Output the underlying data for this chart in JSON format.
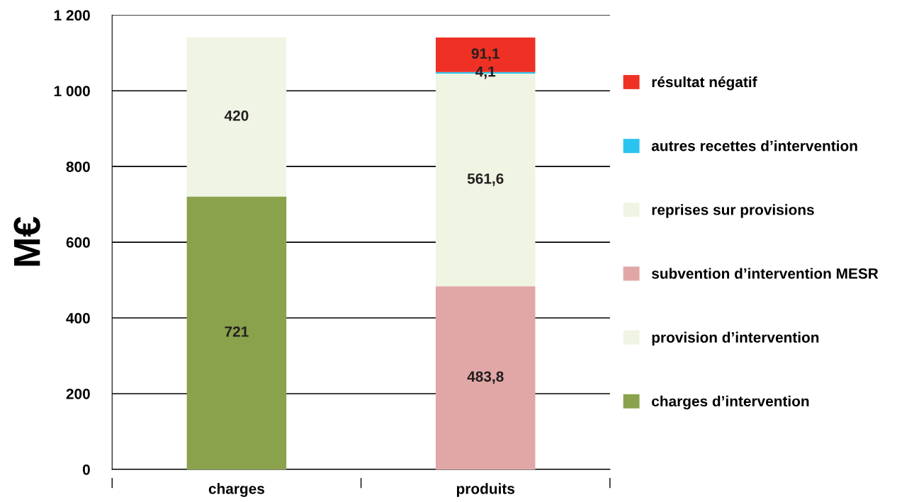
{
  "chart_data": {
    "type": "bar",
    "stacked": true,
    "ylabel": "M€",
    "categories": [
      "charges",
      "produits"
    ],
    "ylim": [
      0,
      1200
    ],
    "yticks": [
      0,
      200,
      400,
      600,
      800,
      {
        "value": 1000,
        "label": "1 000"
      },
      {
        "value": 1200,
        "label": "1 200"
      }
    ],
    "grid": "y",
    "legend": "right",
    "series": [
      {
        "name": "charges d’intervention",
        "color": "#8aa24b",
        "values": [
          721,
          null
        ],
        "value_labels": [
          "721",
          null
        ]
      },
      {
        "name": "provision d’intervention",
        "color": "#f0f4e4",
        "values": [
          420,
          null
        ],
        "value_labels": [
          "420",
          null
        ]
      },
      {
        "name": "subvention d’intervention MESR",
        "color": "#e1a7a6",
        "values": [
          null,
          483.8
        ],
        "value_labels": [
          null,
          "483,8"
        ]
      },
      {
        "name": "reprises sur provisions",
        "color": "#eff4e3",
        "values": [
          null,
          561.6
        ],
        "value_labels": [
          null,
          "561,6"
        ]
      },
      {
        "name": "autres recettes d’intervention",
        "color": "#2bc3f0",
        "values": [
          null,
          4.1
        ],
        "value_labels": [
          null,
          "4,1"
        ]
      },
      {
        "name": "résultat négatif",
        "color": "#ee3124",
        "values": [
          null,
          91.1
        ],
        "value_labels": [
          null,
          "91,1"
        ]
      }
    ]
  }
}
